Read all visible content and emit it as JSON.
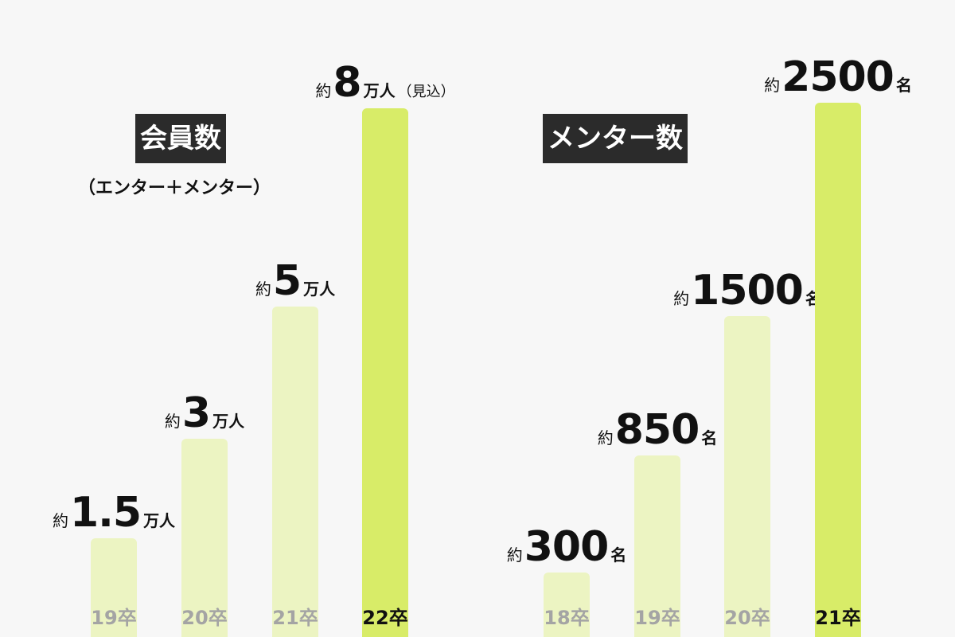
{
  "colors": {
    "bar_normal": "#ecf4c2",
    "bar_highlight": "#d8ec68",
    "cat_normal": "#a4a4a4",
    "cat_highlight": "#111111",
    "title_bg": "#2b2b2b"
  },
  "chart_data": [
    {
      "type": "bar",
      "title": "会員数",
      "subtitle": "（エンター＋メンター）",
      "categories": [
        "19卒",
        "20卒",
        "21卒",
        "22卒"
      ],
      "values": [
        1.5,
        3,
        5,
        8
      ],
      "value_labels": [
        {
          "prefix": "約",
          "number": "1.5",
          "unit": "万人",
          "note": ""
        },
        {
          "prefix": "約",
          "number": "3",
          "unit": "万人",
          "note": ""
        },
        {
          "prefix": "約",
          "number": "5",
          "unit": "万人",
          "note": ""
        },
        {
          "prefix": "約",
          "number": "8",
          "unit": "万人",
          "note": "（見込）"
        }
      ],
      "highlight_index": 3,
      "ylim": [
        0,
        8
      ]
    },
    {
      "type": "bar",
      "title": "メンター数",
      "categories": [
        "18卒",
        "19卒",
        "20卒",
        "21卒"
      ],
      "values": [
        300,
        850,
        1500,
        2500
      ],
      "value_labels": [
        {
          "prefix": "約",
          "number": "300",
          "unit": "名",
          "note": ""
        },
        {
          "prefix": "約",
          "number": "850",
          "unit": "名",
          "note": ""
        },
        {
          "prefix": "約",
          "number": "1500",
          "unit": "名",
          "note": ""
        },
        {
          "prefix": "約",
          "number": "2500",
          "unit": "名",
          "note": ""
        }
      ],
      "highlight_index": 3,
      "ylim": [
        0,
        2500
      ]
    }
  ]
}
